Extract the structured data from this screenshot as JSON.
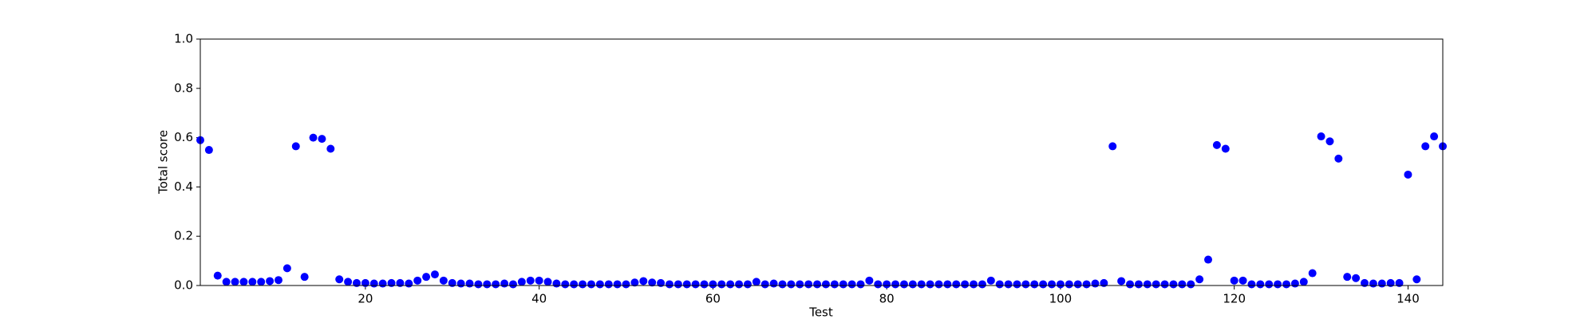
{
  "chart_data": {
    "type": "scatter",
    "x_label": "Test",
    "y_label": "Total score",
    "series": [
      {
        "color": "#0000ff",
        "x": [
          1,
          2,
          3,
          4,
          5,
          6,
          7,
          8,
          9,
          10,
          11,
          12,
          13,
          14,
          15,
          16,
          17,
          18,
          19,
          20,
          21,
          22,
          23,
          24,
          25,
          26,
          27,
          28,
          29,
          30,
          31,
          32,
          33,
          34,
          35,
          36,
          37,
          38,
          39,
          40,
          41,
          42,
          43,
          44,
          45,
          46,
          47,
          48,
          49,
          50,
          51,
          52,
          53,
          54,
          55,
          56,
          57,
          58,
          59,
          60,
          61,
          62,
          63,
          64,
          65,
          66,
          67,
          68,
          69,
          70,
          71,
          72,
          73,
          74,
          75,
          76,
          77,
          78,
          79,
          80,
          81,
          82,
          83,
          84,
          85,
          86,
          87,
          88,
          89,
          90,
          91,
          92,
          93,
          94,
          95,
          96,
          97,
          98,
          99,
          100,
          101,
          102,
          103,
          104,
          105,
          106,
          107,
          108,
          109,
          110,
          111,
          112,
          113,
          114,
          115,
          116,
          117,
          118,
          119,
          120,
          121,
          122,
          123,
          124,
          125,
          126,
          127,
          128,
          129,
          130,
          131,
          132,
          133,
          134,
          135,
          136,
          137,
          138,
          139,
          140,
          141,
          142,
          143,
          144
        ],
        "values": [
          0.59,
          0.55,
          0.04,
          0.015,
          0.015,
          0.015,
          0.015,
          0.015,
          0.018,
          0.022,
          0.07,
          0.565,
          0.035,
          0.6,
          0.595,
          0.555,
          0.025,
          0.015,
          0.01,
          0.01,
          0.008,
          0.008,
          0.01,
          0.01,
          0.008,
          0.02,
          0.035,
          0.045,
          0.02,
          0.01,
          0.008,
          0.008,
          0.005,
          0.005,
          0.005,
          0.008,
          0.005,
          0.015,
          0.02,
          0.02,
          0.015,
          0.008,
          0.005,
          0.005,
          0.005,
          0.005,
          0.005,
          0.005,
          0.005,
          0.005,
          0.012,
          0.018,
          0.012,
          0.01,
          0.005,
          0.005,
          0.005,
          0.005,
          0.005,
          0.005,
          0.005,
          0.005,
          0.005,
          0.005,
          0.015,
          0.005,
          0.008,
          0.005,
          0.005,
          0.005,
          0.005,
          0.005,
          0.005,
          0.005,
          0.005,
          0.005,
          0.005,
          0.02,
          0.005,
          0.005,
          0.005,
          0.005,
          0.005,
          0.005,
          0.005,
          0.005,
          0.005,
          0.005,
          0.005,
          0.005,
          0.005,
          0.02,
          0.005,
          0.005,
          0.005,
          0.005,
          0.005,
          0.005,
          0.005,
          0.005,
          0.005,
          0.005,
          0.005,
          0.008,
          0.01,
          0.565,
          0.018,
          0.005,
          0.005,
          0.005,
          0.005,
          0.005,
          0.005,
          0.005,
          0.005,
          0.025,
          0.105,
          0.57,
          0.555,
          0.02,
          0.02,
          0.005,
          0.005,
          0.005,
          0.005,
          0.005,
          0.008,
          0.015,
          0.05,
          0.605,
          0.585,
          0.515,
          0.035,
          0.03,
          0.01,
          0.008,
          0.008,
          0.01,
          0.01,
          0.45,
          0.025,
          0.565,
          0.605,
          0.565
        ]
      }
    ],
    "xlim": [
      1,
      144
    ],
    "xticks": [
      20,
      40,
      60,
      80,
      100,
      120,
      140
    ],
    "ylim": [
      0,
      1
    ],
    "yticks": [
      {
        "value": 0,
        "label": "0.0"
      },
      0.2,
      0.4,
      0.6,
      0.8,
      {
        "value": 1,
        "label": "1.0"
      }
    ]
  }
}
